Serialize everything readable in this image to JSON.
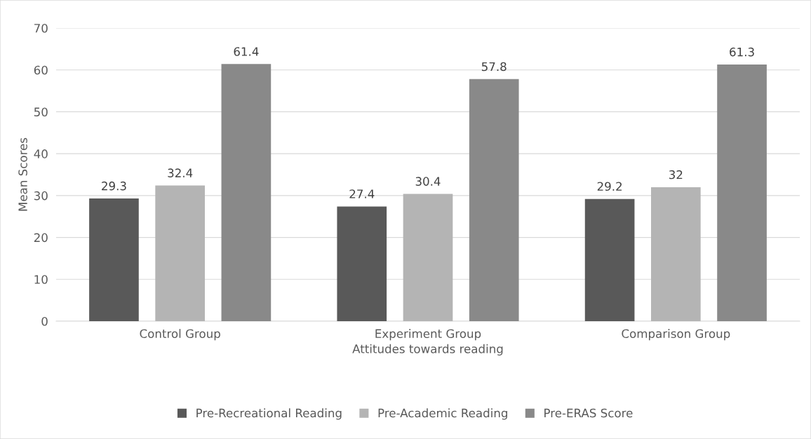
{
  "chart_data": {
    "type": "bar",
    "xlabel": "Attitudes towards reading",
    "ylabel": "Mean Scores",
    "categories": [
      "Control Group",
      "Experiment Group",
      "Comparison Group"
    ],
    "series": [
      {
        "name": "Pre-Recreational Reading",
        "color": "#595959",
        "values": [
          29.3,
          27.4,
          29.2
        ]
      },
      {
        "name": "Pre-Academic Reading",
        "color": "#b4b4b4",
        "values": [
          32.4,
          30.4,
          32
        ]
      },
      {
        "name": "Pre-ERAS Score",
        "color": "#898989",
        "values": [
          61.4,
          57.8,
          61.3
        ]
      }
    ],
    "ylim": [
      0,
      70
    ],
    "yticks": [
      0,
      10,
      20,
      30,
      40,
      50,
      60,
      70
    ],
    "grid": "y",
    "legend": "bottom",
    "data_labels": true
  }
}
